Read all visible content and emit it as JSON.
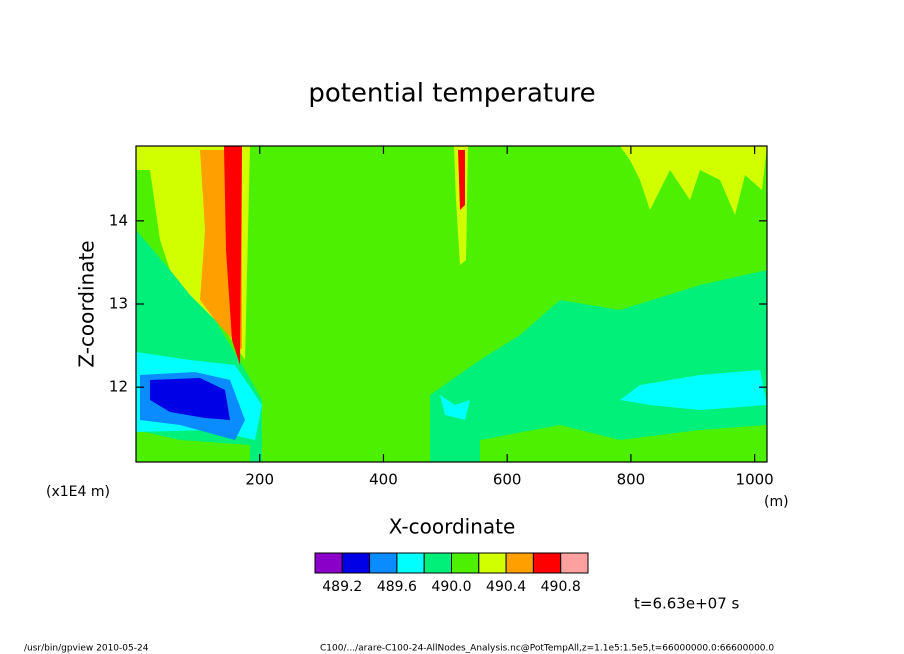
{
  "chart_data": {
    "type": "contour",
    "title": "potential temperature",
    "xlabel": "X-coordinate",
    "ylabel": "Z-coordinate",
    "xunit": "(m)",
    "yunit": "(x1E4 m)",
    "xlim": [
      0,
      1020
    ],
    "xticks": [
      200,
      400,
      600,
      800,
      1000
    ],
    "ylim": [
      11.1,
      14.9
    ],
    "yticks": [
      12,
      13,
      14
    ],
    "colorbar": {
      "colors": [
        "#8a00c8",
        "#0000e6",
        "#0a8cff",
        "#00ffff",
        "#00f07a",
        "#4cf000",
        "#d2ff00",
        "#ffa000",
        "#ff0000",
        "#ffa0a0"
      ],
      "ticks": [
        489.2,
        489.6,
        {
          "value": 490,
          "label": "490.0"
        },
        490.4,
        490.8
      ],
      "levels_start": 489.0,
      "level_step": 0.2
    },
    "annotation": "t=6.63e+07 s",
    "footer_left": "/usr/bin/gpview   2010-05-24",
    "footer_right": "C100/.../arare-C100-24-AllNodes_Analysis.nc@PotTempAll,z=1.1e5:1.5e5,t=66000000.0:66600000.0"
  }
}
